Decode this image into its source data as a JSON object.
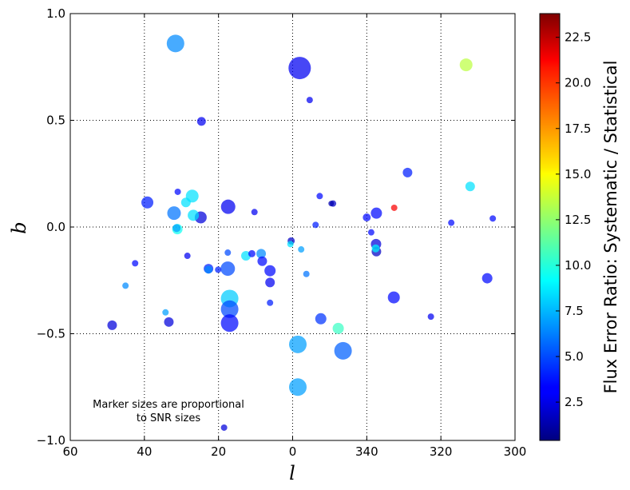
{
  "chart_data": {
    "type": "scatter",
    "xlabel": "l",
    "ylabel": "b",
    "x_ticks": [
      60,
      40,
      20,
      0,
      340,
      320,
      300
    ],
    "x_tick_labels": [
      "60",
      "40",
      "20",
      "0",
      "340",
      "320",
      "300"
    ],
    "xlim": [
      60,
      -60
    ],
    "x_note": "galactic longitude; labels wrap at 0 (e.g. 340 = -20)",
    "y_ticks": [
      1.0,
      0.5,
      0.0,
      -0.5,
      -1.0
    ],
    "y_tick_labels": [
      "1.0",
      "0.5",
      "0.0",
      "−0.5",
      "−1.0"
    ],
    "ylim": [
      -1.0,
      1.0
    ],
    "grid": true,
    "annotation_line1": "Marker sizes are proportional",
    "annotation_line2": "to SNR sizes",
    "colorbar": {
      "label": "Flux Error Ratio: Systematic / Statistical",
      "range": [
        0.4,
        23.8
      ],
      "colormap": "jet",
      "ticks": [
        2.5,
        5.0,
        7.5,
        10.0,
        12.5,
        15.0,
        17.5,
        20.0,
        22.5
      ],
      "tick_labels": [
        "2.5",
        "5.0",
        "7.5",
        "10.0",
        "12.5",
        "15.0",
        "17.5",
        "20.0",
        "22.5"
      ]
    },
    "points": [
      {
        "l": 31.6,
        "b": 0.86,
        "size": 11,
        "ratio": 6.5
      },
      {
        "l": -1.9,
        "b": 0.745,
        "size": 14,
        "ratio": 3.0
      },
      {
        "l": -4.6,
        "b": 0.595,
        "size": 4,
        "ratio": 3.0
      },
      {
        "l": -46.8,
        "b": 0.76,
        "size": 8,
        "ratio": 13.5
      },
      {
        "l": 24.6,
        "b": 0.495,
        "size": 5.5,
        "ratio": 3.0
      },
      {
        "l": -31.0,
        "b": 0.255,
        "size": 6,
        "ratio": 4.0
      },
      {
        "l": -47.9,
        "b": 0.19,
        "size": 6,
        "ratio": 8.5
      },
      {
        "l": 39.2,
        "b": 0.115,
        "size": 7.5,
        "ratio": 4.0
      },
      {
        "l": 32.0,
        "b": 0.065,
        "size": 8.5,
        "ratio": 6.0
      },
      {
        "l": 31.0,
        "b": 0.165,
        "size": 4,
        "ratio": 3.5
      },
      {
        "l": 27.1,
        "b": 0.145,
        "size": 8,
        "ratio": 8.5
      },
      {
        "l": 28.8,
        "b": 0.115,
        "size": 6,
        "ratio": 8.5
      },
      {
        "l": 26.8,
        "b": 0.055,
        "size": 7,
        "ratio": 8.5
      },
      {
        "l": 24.8,
        "b": 0.045,
        "size": 7.5,
        "ratio": 2.5
      },
      {
        "l": 17.4,
        "b": 0.095,
        "size": 9,
        "ratio": 3.0
      },
      {
        "l": 10.3,
        "b": 0.07,
        "size": 4,
        "ratio": 3.0
      },
      {
        "l": 31.1,
        "b": -0.01,
        "size": 6.5,
        "ratio": 9.5
      },
      {
        "l": 31.3,
        "b": -0.005,
        "size": 5,
        "ratio": 7.0
      },
      {
        "l": -7.3,
        "b": 0.145,
        "size": 4,
        "ratio": 3.5
      },
      {
        "l": -10.9,
        "b": 0.11,
        "size": 4,
        "ratio": 2.0
      },
      {
        "l": -10.4,
        "b": 0.11,
        "size": 3.5,
        "ratio": 1.5
      },
      {
        "l": -6.2,
        "b": 0.01,
        "size": 4,
        "ratio": 4.0
      },
      {
        "l": -20.0,
        "b": 0.045,
        "size": 5,
        "ratio": 3.5
      },
      {
        "l": -22.6,
        "b": 0.065,
        "size": 7,
        "ratio": 3.5
      },
      {
        "l": -27.4,
        "b": 0.09,
        "size": 4,
        "ratio": 21.0
      },
      {
        "l": -42.8,
        "b": 0.02,
        "size": 4,
        "ratio": 3.5
      },
      {
        "l": -54.0,
        "b": 0.04,
        "size": 4,
        "ratio": 3.5
      },
      {
        "l": -21.2,
        "b": -0.025,
        "size": 4,
        "ratio": 3.5
      },
      {
        "l": -22.5,
        "b": -0.08,
        "size": 6.5,
        "ratio": 2.5
      },
      {
        "l": -22.6,
        "b": -0.115,
        "size": 6,
        "ratio": 2.0
      },
      {
        "l": -22.4,
        "b": -0.1,
        "size": 5,
        "ratio": 9.0
      },
      {
        "l": 0.4,
        "b": -0.065,
        "size": 4.5,
        "ratio": 2.0
      },
      {
        "l": 0.6,
        "b": -0.08,
        "size": 4,
        "ratio": 8.5
      },
      {
        "l": -2.3,
        "b": -0.105,
        "size": 4,
        "ratio": 7.0
      },
      {
        "l": 42.5,
        "b": -0.17,
        "size": 4,
        "ratio": 3.5
      },
      {
        "l": 28.4,
        "b": -0.135,
        "size": 4,
        "ratio": 3.0
      },
      {
        "l": 22.7,
        "b": -0.195,
        "size": 6,
        "ratio": 4.0
      },
      {
        "l": 22.7,
        "b": -0.2,
        "size": 5,
        "ratio": 6.5
      },
      {
        "l": 20.1,
        "b": -0.2,
        "size": 4,
        "ratio": 4.0
      },
      {
        "l": 17.5,
        "b": -0.12,
        "size": 4,
        "ratio": 5.0
      },
      {
        "l": 17.5,
        "b": -0.195,
        "size": 9,
        "ratio": 5.0
      },
      {
        "l": 12.6,
        "b": -0.135,
        "size": 6,
        "ratio": 8.5
      },
      {
        "l": 11.0,
        "b": -0.125,
        "size": 4.5,
        "ratio": 3.5
      },
      {
        "l": 8.5,
        "b": -0.125,
        "size": 6,
        "ratio": 6.5
      },
      {
        "l": 8.2,
        "b": -0.16,
        "size": 6,
        "ratio": 3.5
      },
      {
        "l": 6.1,
        "b": -0.205,
        "size": 7,
        "ratio": 3.5
      },
      {
        "l": 6.1,
        "b": -0.26,
        "size": 6,
        "ratio": 3.0
      },
      {
        "l": -3.7,
        "b": -0.22,
        "size": 4,
        "ratio": 6.0
      },
      {
        "l": 45.1,
        "b": -0.275,
        "size": 4,
        "ratio": 6.5
      },
      {
        "l": 6.1,
        "b": -0.355,
        "size": 4,
        "ratio": 4.0
      },
      {
        "l": 17.0,
        "b": -0.335,
        "size": 11,
        "ratio": 8.0
      },
      {
        "l": 17.0,
        "b": -0.385,
        "size": 11,
        "ratio": 5.0
      },
      {
        "l": 17.0,
        "b": -0.45,
        "size": 11,
        "ratio": 3.5
      },
      {
        "l": 34.3,
        "b": -0.4,
        "size": 4,
        "ratio": 7.0
      },
      {
        "l": 33.4,
        "b": -0.445,
        "size": 6,
        "ratio": 2.5
      },
      {
        "l": -7.6,
        "b": -0.43,
        "size": 7,
        "ratio": 4.5
      },
      {
        "l": -12.3,
        "b": -0.475,
        "size": 7,
        "ratio": 10.5
      },
      {
        "l": -27.3,
        "b": -0.33,
        "size": 7.5,
        "ratio": 3.5
      },
      {
        "l": -37.3,
        "b": -0.42,
        "size": 4,
        "ratio": 3.0
      },
      {
        "l": -52.5,
        "b": -0.24,
        "size": 6.5,
        "ratio": 3.5
      },
      {
        "l": 48.7,
        "b": -0.46,
        "size": 6,
        "ratio": 2.5
      },
      {
        "l": -1.4,
        "b": -0.55,
        "size": 11,
        "ratio": 7.0
      },
      {
        "l": -13.6,
        "b": -0.58,
        "size": 11,
        "ratio": 5.5
      },
      {
        "l": -1.4,
        "b": -0.75,
        "size": 11,
        "ratio": 7.0
      },
      {
        "l": 18.5,
        "b": -0.94,
        "size": 4,
        "ratio": 2.5
      }
    ]
  }
}
